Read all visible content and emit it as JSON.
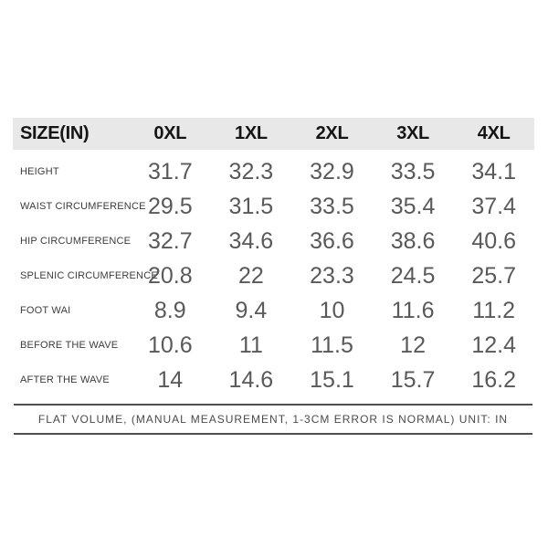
{
  "chart_data": {
    "type": "table",
    "title": "SIZE(IN)",
    "columns": [
      "0XL",
      "1XL",
      "2XL",
      "3XL",
      "4XL"
    ],
    "rows": [
      {
        "label": "HEIGHT",
        "values": [
          "31.7",
          "32.3",
          "32.9",
          "33.5",
          "34.1"
        ]
      },
      {
        "label": "WAIST CIRCUMFERENCE",
        "values": [
          "29.5",
          "31.5",
          "33.5",
          "35.4",
          "37.4"
        ]
      },
      {
        "label": "HIP CIRCUMFERENCE",
        "values": [
          "32.7",
          "34.6",
          "36.6",
          "38.6",
          "40.6"
        ]
      },
      {
        "label": "SPLENIC CIRCUMFERENCE",
        "values": [
          "20.8",
          "22",
          "23.3",
          "24.5",
          "25.7"
        ]
      },
      {
        "label": "FOOT WAI",
        "values": [
          "8.9",
          "9.4",
          "10",
          "11.6",
          "11.2"
        ]
      },
      {
        "label": "BEFORE THE WAVE",
        "values": [
          "10.6",
          "11",
          "11.5",
          "12",
          "12.4"
        ]
      },
      {
        "label": "AFTER THE WAVE",
        "values": [
          "14",
          "14.6",
          "15.1",
          "15.7",
          "16.2"
        ]
      }
    ],
    "note": "FLAT VOLUME, (MANUAL MEASUREMENT, 1-3CM ERROR IS NORMAL) UNIT: IN",
    "layout_hints": {
      "header_background": "#e8e8e8",
      "grid": "off",
      "unit": "IN"
    }
  },
  "colors": {
    "header_bg": "#e8e8e8",
    "header_text": "#151515",
    "label_text": "#3c3c3c",
    "value_text": "#595959",
    "rule": "#4f4f4f",
    "background": "#ffffff"
  }
}
